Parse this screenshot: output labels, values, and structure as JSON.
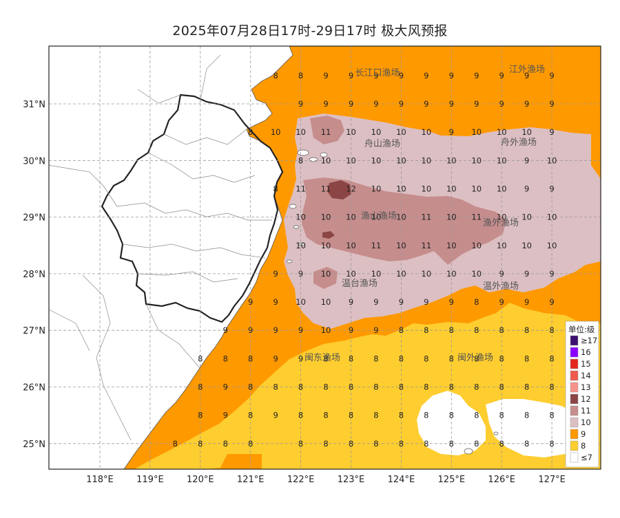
{
  "title": "2025年07月28日17时-29日17时 极大风预报",
  "map": {
    "lon_ticks": [
      "118°E",
      "119°E",
      "120°E",
      "121°E",
      "122°E",
      "123°E",
      "124°E",
      "125°E",
      "126°E",
      "127°E"
    ],
    "lat_ticks": [
      "31°N",
      "30°N",
      "29°N",
      "28°N",
      "27°N",
      "26°N",
      "25°N"
    ],
    "fishing_grounds": [
      "长江口渔场",
      "江外渔场",
      "舟山渔场",
      "舟外渔场",
      "渔山渔场",
      "渔外渔场",
      "温台渔场",
      "温外渔场",
      "闽东渔场",
      "闽外渔场"
    ],
    "grid_lon": [
      122,
      122.5,
      123,
      123.5,
      124,
      124.5,
      125,
      125.5,
      126,
      126.5,
      127
    ],
    "grid_lat": [
      31.5,
      31,
      30.5,
      30,
      29.5,
      29,
      28.5,
      28,
      27.5,
      27,
      26.5,
      26,
      25.5,
      25
    ],
    "grid_values": [
      [
        8,
        9,
        9,
        9,
        9,
        9,
        9,
        9,
        9,
        9,
        9
      ],
      [
        9,
        9,
        9,
        9,
        9,
        9,
        9,
        9,
        9,
        9,
        9
      ],
      [
        10,
        11,
        10,
        10,
        10,
        10,
        9,
        10,
        10,
        10,
        9
      ],
      [
        8,
        10,
        10,
        10,
        10,
        10,
        10,
        10,
        10,
        9,
        10
      ],
      [
        11,
        11,
        12,
        10,
        10,
        10,
        10,
        10,
        10,
        9,
        9
      ],
      [
        10,
        10,
        10,
        10,
        10,
        11,
        10,
        11,
        10,
        10,
        10
      ],
      [
        10,
        10,
        10,
        11,
        10,
        11,
        10,
        10,
        10,
        10,
        10
      ],
      [
        9,
        10,
        10,
        10,
        10,
        10,
        10,
        10,
        9,
        9,
        9
      ],
      [
        10,
        10,
        9,
        9,
        9,
        9,
        9,
        8,
        9,
        9,
        9
      ],
      [
        9,
        10,
        9,
        9,
        8,
        8,
        8,
        8,
        8,
        8,
        8
      ],
      [
        9,
        8,
        8,
        8,
        8,
        8,
        8,
        8,
        8,
        8,
        8
      ],
      [
        8,
        8,
        8,
        8,
        8,
        8,
        8,
        8,
        8,
        8,
        8
      ],
      [
        8,
        8,
        8,
        8,
        8,
        8,
        8,
        8,
        8,
        8,
        8
      ],
      [
        8,
        8,
        8,
        8,
        8,
        8,
        8,
        8,
        8,
        8,
        8
      ]
    ],
    "coast_values": [
      {
        "lon": 121.5,
        "lat": 31.5,
        "v": 8
      },
      {
        "lon": 121,
        "lat": 30.5,
        "v": 8
      },
      {
        "lon": 121.5,
        "lat": 30.5,
        "v": 10
      },
      {
        "lon": 121.5,
        "lat": 29.5,
        "v": 8
      },
      {
        "lon": 121.5,
        "lat": 28,
        "v": 9
      },
      {
        "lon": 121,
        "lat": 27.5,
        "v": 9
      },
      {
        "lon": 121.5,
        "lat": 27.5,
        "v": 9
      },
      {
        "lon": 120.5,
        "lat": 27,
        "v": 9
      },
      {
        "lon": 121,
        "lat": 27,
        "v": 9
      },
      {
        "lon": 121.5,
        "lat": 27,
        "v": 9
      },
      {
        "lon": 120,
        "lat": 26.5,
        "v": 8
      },
      {
        "lon": 120.5,
        "lat": 26.5,
        "v": 8
      },
      {
        "lon": 121,
        "lat": 26.5,
        "v": 8
      },
      {
        "lon": 121.5,
        "lat": 26.5,
        "v": 9
      },
      {
        "lon": 120,
        "lat": 26,
        "v": 8
      },
      {
        "lon": 120.5,
        "lat": 26,
        "v": 9
      },
      {
        "lon": 121,
        "lat": 26,
        "v": 8
      },
      {
        "lon": 121.5,
        "lat": 26,
        "v": 8
      },
      {
        "lon": 120,
        "lat": 25.5,
        "v": 8
      },
      {
        "lon": 120.5,
        "lat": 25.5,
        "v": 9
      },
      {
        "lon": 121,
        "lat": 25.5,
        "v": 8
      },
      {
        "lon": 121.5,
        "lat": 25.5,
        "v": 9
      },
      {
        "lon": 119.5,
        "lat": 25,
        "v": 8
      },
      {
        "lon": 120,
        "lat": 25,
        "v": 8
      },
      {
        "lon": 120.5,
        "lat": 25,
        "v": 8
      },
      {
        "lon": 121,
        "lat": 25,
        "v": 8
      }
    ]
  },
  "legend": {
    "title": "单位:级",
    "items": [
      {
        "label": "≥17",
        "color": "#3d1070"
      },
      {
        "label": "16",
        "color": "#8a00ff"
      },
      {
        "label": "15",
        "color": "#e5261e"
      },
      {
        "label": "14",
        "color": "#ef5a4f"
      },
      {
        "label": "13",
        "color": "#f7928a"
      },
      {
        "label": "12",
        "color": "#8b4545"
      },
      {
        "label": "11",
        "color": "#c68d8d"
      },
      {
        "label": "10",
        "color": "#dcbfc3"
      },
      {
        "label": "9",
        "color": "#ff9900"
      },
      {
        "label": "8",
        "color": "#fecd2f"
      },
      {
        "label": "≤7",
        "color": "#ffffff"
      }
    ]
  }
}
